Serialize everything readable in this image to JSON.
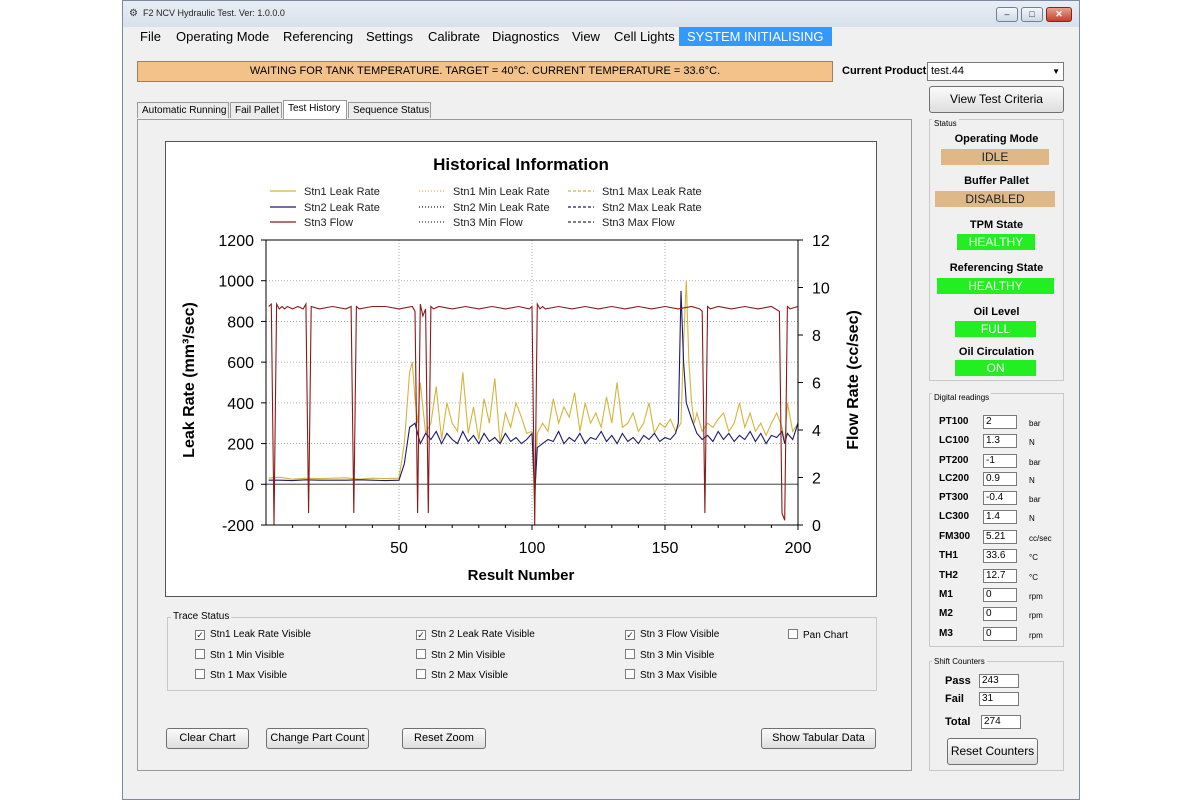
{
  "window": {
    "title": "F2 NCV Hydraulic Test. Ver: 1.0.0.0",
    "controls": [
      "–",
      "□",
      "✕"
    ]
  },
  "menu": [
    "File",
    "Operating Mode",
    "Referencing",
    "Settings",
    "Calibrate",
    "Diagnostics",
    "View",
    "Cell Lights"
  ],
  "system_status": "SYSTEM INITIALISING",
  "banner": "WAITING FOR TANK TEMPERATURE. TARGET = 40°C. CURRENT TEMPERATURE = 33.6°C.",
  "current_product": {
    "label": "Current Product",
    "value": "test.44"
  },
  "view_test_criteria": "View Test Criteria",
  "tabs": [
    "Automatic Running",
    "Fail Pallet",
    "Test History",
    "Sequence Status"
  ],
  "active_tab": 2,
  "chart_data": {
    "type": "line",
    "title": "Historical Information",
    "xlabel": "Result Number",
    "ylabel": "Leak Rate (mm³/sec)",
    "y2label": "Flow Rate (cc/sec)",
    "xlim": [
      0,
      200
    ],
    "ylim": [
      -200,
      1200
    ],
    "y2lim": [
      0,
      12
    ],
    "x_ticks": [
      "50",
      "100",
      "150",
      "200"
    ],
    "y_ticks": [
      "-200",
      "0",
      "200",
      "400",
      "600",
      "800",
      "1000",
      "1200"
    ],
    "y2_ticks": [
      "0",
      "2",
      "4",
      "6",
      "8",
      "10",
      "12"
    ],
    "grid": true,
    "legend_position": "top",
    "legend": [
      {
        "name": "Stn1 Leak Rate",
        "color": "#d4b43c",
        "style": "solid"
      },
      {
        "name": "Stn1 Min Leak Rate",
        "color": "#d4b43c",
        "style": "dotted"
      },
      {
        "name": "Stn1 Max Leak Rate",
        "color": "#d4b43c",
        "style": "dashed"
      },
      {
        "name": "Stn2 Leak Rate",
        "color": "#1a1a6e",
        "style": "solid"
      },
      {
        "name": "Stn2 Min Leak Rate",
        "color": "#1a1a6e",
        "style": "dotted"
      },
      {
        "name": "Stn2 Max Leak Rate",
        "color": "#1a1a6e",
        "style": "dashed"
      },
      {
        "name": "Stn3 Flow",
        "color": "#8b1a1a",
        "style": "solid"
      },
      {
        "name": "Stn3 Min Flow",
        "color": "#333333",
        "style": "dotted"
      },
      {
        "name": "Stn3 Max Flow",
        "color": "#333333",
        "style": "dashed"
      }
    ],
    "series": [
      {
        "name": "Stn1 Leak Rate",
        "axis": "left",
        "x": [
          1,
          5,
          10,
          15,
          20,
          25,
          30,
          35,
          40,
          45,
          50,
          52,
          54,
          55,
          56,
          57,
          58,
          60,
          62,
          64,
          66,
          68,
          70,
          72,
          74,
          76,
          78,
          80,
          82,
          84,
          86,
          88,
          90,
          92,
          94,
          96,
          98,
          100,
          101,
          102,
          104,
          106,
          108,
          110,
          112,
          114,
          116,
          118,
          120,
          122,
          124,
          126,
          128,
          130,
          132,
          134,
          136,
          138,
          140,
          142,
          144,
          146,
          148,
          150,
          152,
          154,
          156,
          157,
          158,
          159,
          160,
          161,
          162,
          164,
          166,
          168,
          170,
          172,
          174,
          176,
          178,
          180,
          182,
          184,
          186,
          188,
          190,
          192,
          194,
          195,
          196,
          198,
          200
        ],
        "y": [
          30,
          35,
          25,
          30,
          28,
          30,
          32,
          25,
          30,
          28,
          30,
          200,
          550,
          600,
          420,
          300,
          500,
          250,
          300,
          480,
          220,
          400,
          300,
          260,
          550,
          250,
          380,
          220,
          420,
          300,
          520,
          200,
          350,
          280,
          400,
          330,
          250,
          260,
          -100,
          250,
          300,
          260,
          420,
          300,
          380,
          330,
          450,
          260,
          400,
          300,
          350,
          280,
          430,
          300,
          500,
          280,
          300,
          350,
          260,
          300,
          400,
          250,
          300,
          280,
          320,
          260,
          300,
          700,
          1000,
          600,
          400,
          300,
          350,
          260,
          300,
          280,
          320,
          350,
          260,
          300,
          400,
          280,
          350,
          260,
          300,
          240,
          300,
          350,
          280,
          200,
          400,
          260,
          300
        ]
      },
      {
        "name": "Stn2 Leak Rate",
        "axis": "left",
        "x": [
          1,
          5,
          10,
          15,
          20,
          25,
          30,
          35,
          40,
          45,
          50,
          52,
          54,
          56,
          58,
          60,
          62,
          64,
          66,
          68,
          70,
          72,
          74,
          76,
          78,
          80,
          82,
          84,
          86,
          88,
          90,
          92,
          94,
          96,
          98,
          100,
          101,
          102,
          104,
          106,
          108,
          110,
          112,
          114,
          116,
          118,
          120,
          122,
          124,
          126,
          128,
          130,
          132,
          134,
          136,
          138,
          140,
          142,
          144,
          146,
          148,
          150,
          152,
          154,
          155,
          156,
          157,
          158,
          160,
          162,
          164,
          166,
          168,
          170,
          172,
          174,
          176,
          178,
          180,
          182,
          184,
          186,
          188,
          190,
          192,
          194,
          195,
          196,
          198,
          200
        ],
        "y": [
          20,
          20,
          18,
          22,
          20,
          20,
          20,
          22,
          20,
          18,
          20,
          100,
          280,
          300,
          200,
          250,
          220,
          260,
          200,
          250,
          220,
          200,
          260,
          210,
          240,
          200,
          250,
          210,
          230,
          200,
          250,
          210,
          230,
          200,
          220,
          250,
          -50,
          180,
          200,
          220,
          210,
          260,
          200,
          230,
          210,
          250,
          200,
          230,
          220,
          260,
          210,
          240,
          200,
          250,
          210,
          230,
          200,
          240,
          220,
          250,
          210,
          230,
          220,
          250,
          300,
          950,
          600,
          400,
          320,
          250,
          220,
          240,
          210,
          260,
          220,
          250,
          210,
          240,
          220,
          260,
          210,
          250,
          200,
          240,
          230,
          260,
          200,
          250,
          220,
          300
        ]
      },
      {
        "name": "Stn3 Flow",
        "axis": "right",
        "x": [
          1,
          2,
          3,
          4,
          5,
          6,
          7,
          8,
          10,
          12,
          14,
          15,
          16,
          17,
          20,
          25,
          30,
          32,
          33,
          34,
          35,
          40,
          45,
          50,
          55,
          56,
          57,
          58,
          59,
          60,
          61,
          62,
          63,
          65,
          70,
          75,
          80,
          85,
          90,
          95,
          99,
          100,
          101,
          102,
          103,
          104,
          105,
          110,
          115,
          120,
          125,
          130,
          135,
          140,
          145,
          150,
          155,
          160,
          163,
          164,
          165,
          166,
          167,
          170,
          175,
          180,
          185,
          190,
          193,
          194,
          195,
          196,
          197,
          200
        ],
        "y": [
          9.2,
          9.3,
          0,
          9.3,
          9.1,
          9.2,
          9.1,
          9.2,
          9.1,
          9.2,
          9.1,
          9.3,
          0.5,
          9.2,
          9.1,
          9.2,
          9.1,
          9.2,
          0.5,
          9.2,
          9.1,
          9.2,
          9.2,
          9.1,
          9.2,
          9.0,
          0.5,
          9.3,
          8.8,
          9.1,
          0.5,
          9.2,
          9.1,
          9.2,
          9.1,
          9.2,
          9.1,
          9.2,
          9.1,
          9.2,
          9.1,
          9.2,
          0,
          9.3,
          9.1,
          9.2,
          9.1,
          9.2,
          9.1,
          9.2,
          9.1,
          9.2,
          9.1,
          9.2,
          9.1,
          9.2,
          9.1,
          9.2,
          9.1,
          9.0,
          0.5,
          9.2,
          9.1,
          9.2,
          9.1,
          9.2,
          9.1,
          9.2,
          9.0,
          0.5,
          0.2,
          9.2,
          9.1,
          9.2
        ]
      }
    ]
  },
  "trace_status": {
    "label": "Trace Status",
    "items": [
      {
        "label": "Stn1 Leak Rate Visible",
        "checked": true
      },
      {
        "label": "Stn 2 Leak Rate Visible",
        "checked": true
      },
      {
        "label": "Stn 3 Flow Visible",
        "checked": true
      },
      {
        "label": "Pan Chart",
        "checked": false
      },
      {
        "label": "Stn 1 Min Visible",
        "checked": false
      },
      {
        "label": "Stn 2 Min Visible",
        "checked": false
      },
      {
        "label": "Stn 3 Min Visible",
        "checked": false
      },
      {
        "label": "Stn 1 Max Visible",
        "checked": false
      },
      {
        "label": "Stn 2 Max Visible",
        "checked": false
      },
      {
        "label": "Stn 3 Max Visible",
        "checked": false
      }
    ]
  },
  "buttons": {
    "clear_chart": "Clear Chart",
    "change_part_count": "Change Part Count",
    "reset_zoom": "Reset Zoom",
    "show_tabular_data": "Show Tabular Data",
    "reset_counters": "Reset Counters"
  },
  "status": {
    "title": "Status",
    "items": [
      {
        "label": "Operating Mode",
        "value": "IDLE"
      },
      {
        "label": "Buffer Pallet",
        "value": "DISABLED"
      },
      {
        "label": "TPM State",
        "value": "HEALTHY"
      },
      {
        "label": "Referencing State",
        "value": "HEALTHY"
      },
      {
        "label": "Oil Level",
        "value": "FULL"
      },
      {
        "label": "Oil Circulation",
        "value": "ON"
      }
    ]
  },
  "digital_readings": {
    "title": "Digital readings",
    "items": [
      {
        "label": "PT100",
        "value": "2",
        "unit": "bar"
      },
      {
        "label": "LC100",
        "value": "1.3",
        "unit": "N"
      },
      {
        "label": "PT200",
        "value": "-1",
        "unit": "bar"
      },
      {
        "label": "LC200",
        "value": "0.9",
        "unit": "N"
      },
      {
        "label": "PT300",
        "value": "-0.4",
        "unit": "bar"
      },
      {
        "label": "LC300",
        "value": "1.4",
        "unit": "N"
      },
      {
        "label": "FM300",
        "value": "5.21",
        "unit": "cc/sec"
      },
      {
        "label": "TH1",
        "value": "33.6",
        "unit": "°C"
      },
      {
        "label": "TH2",
        "value": "12.7",
        "unit": "°C"
      },
      {
        "label": "M1",
        "value": "0",
        "unit": "rpm"
      },
      {
        "label": "M2",
        "value": "0",
        "unit": "rpm"
      },
      {
        "label": "M3",
        "value": "0",
        "unit": "rpm"
      }
    ]
  },
  "shift_counters": {
    "title": "Shift Counters",
    "pass_label": "Pass",
    "pass": "243",
    "fail_label": "Fail",
    "fail": "31",
    "total_label": "Total",
    "total": "274"
  }
}
